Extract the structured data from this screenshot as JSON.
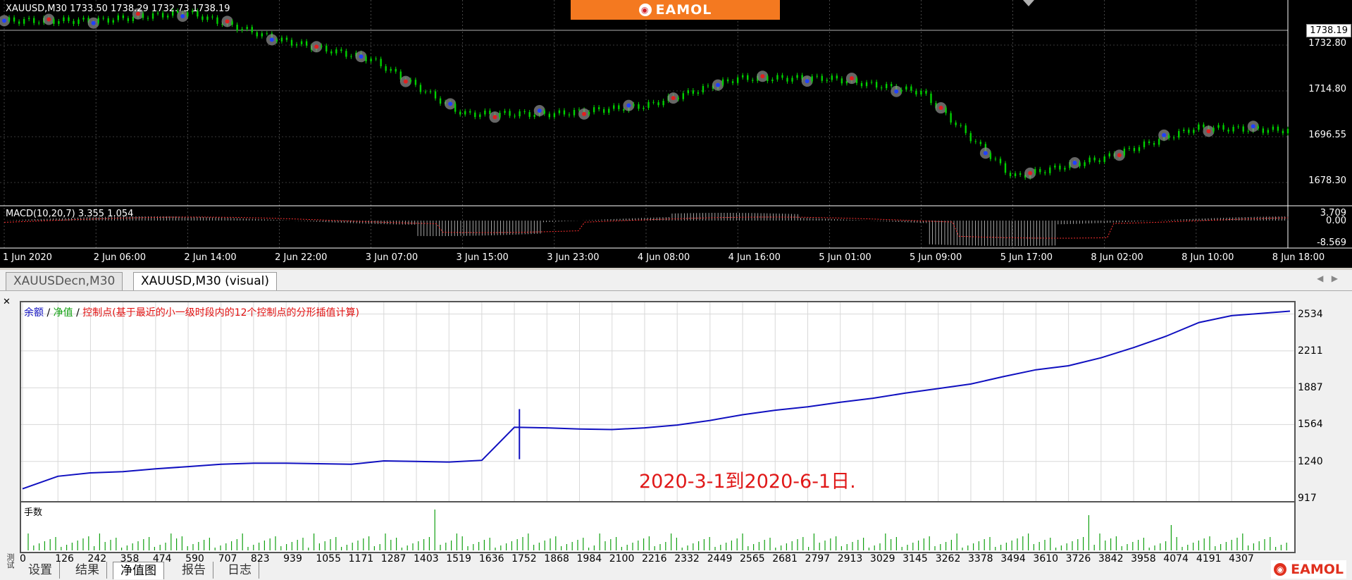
{
  "top_chart": {
    "symbol_label": "XAUUSD,M30  1733.50 1738.29 1732.73 1738.19",
    "banner_text": "EAMOL",
    "banner_logo_icon": "eamol-logo-icon",
    "current_price": "1738.19",
    "price_axis": [
      "1732.80",
      "1714.80",
      "1696.55",
      "1678.30"
    ],
    "macd_label": "MACD(10,20,7) 3.355 1.054",
    "macd_axis": [
      "3.709",
      "0.00",
      "-8.569"
    ],
    "time_axis": [
      "1 Jun 2020",
      "2 Jun 06:00",
      "2 Jun 14:00",
      "2 Jun 22:00",
      "3 Jun 07:00",
      "3 Jun 15:00",
      "3 Jun 23:00",
      "4 Jun 08:00",
      "4 Jun 16:00",
      "5 Jun 01:00",
      "5 Jun 09:00",
      "5 Jun 17:00",
      "8 Jun 02:00",
      "8 Jun 10:00",
      "8 Jun 18:00"
    ],
    "colors": {
      "background": "#000000",
      "up": "#00d000",
      "signal": "#ff3030",
      "grid": "#c0c0c0",
      "banner": "#f47920"
    },
    "chart_data": {
      "type": "line",
      "title": "XAUUSD,M30",
      "x": [
        "1 Jun 2020",
        "2 Jun 06:00",
        "2 Jun 14:00",
        "2 Jun 22:00",
        "3 Jun 07:00",
        "3 Jun 15:00",
        "3 Jun 23:00",
        "4 Jun 08:00",
        "4 Jun 16:00",
        "5 Jun 01:00",
        "5 Jun 09:00",
        "5 Jun 17:00",
        "8 Jun 02:00",
        "8 Jun 10:00",
        "8 Jun 18:00"
      ],
      "series": [
        {
          "values": [
            1736,
            1736,
            1739,
            1729,
            1722,
            1702,
            1702,
            1705,
            1715,
            1715,
            1710,
            1679,
            1686,
            1697,
            1696
          ]
        }
      ],
      "ylim": [
        1669,
        1742
      ]
    }
  },
  "tabs": {
    "items": [
      "XAUUSDecn,M30",
      "XAUUSD,M30 (visual)"
    ],
    "active": 1,
    "scroll_left_icon": "chevron-left-icon",
    "scroll_right_icon": "chevron-right-icon"
  },
  "tester": {
    "close_icon": "close-icon",
    "side_text": "测试",
    "legend": {
      "balance": "余额",
      "equity": "净值",
      "control": "控制点(基于最近的小一级时段内的12个控制点的分形插值计算)",
      "sep": " / "
    },
    "note": "2020-3-1到2020-6-1日.",
    "volume_title": "手数",
    "colors": {
      "balance": "#1010c0",
      "equity": "#10a010",
      "note": "#e01818"
    },
    "chart_data": {
      "type": "line",
      "title": "余额 / 净值",
      "x": [
        0,
        126,
        242,
        358,
        474,
        590,
        707,
        823,
        939,
        1055,
        1171,
        1287,
        1403,
        1519,
        1636,
        1752,
        1868,
        1984,
        2100,
        2216,
        2332,
        2449,
        2565,
        2681,
        2797,
        2913,
        3029,
        3145,
        3262,
        3378,
        3494,
        3610,
        3726,
        3842,
        3958,
        4074,
        4191,
        4307
      ],
      "series": [
        {
          "name": "余额",
          "values": [
            1000,
            1110,
            1140,
            1150,
            1175,
            1195,
            1215,
            1225,
            1225,
            1220,
            1215,
            1245,
            1240,
            1235,
            1250,
            1540,
            1535,
            1525,
            1520,
            1535,
            1560,
            1600,
            1650,
            1690,
            1720,
            1760,
            1795,
            1840,
            1880,
            1920,
            1985,
            2045,
            2080,
            2150,
            2240,
            2340,
            2460,
            2520
          ]
        }
      ],
      "yticks": [
        "2534",
        "2211",
        "1887",
        "1564",
        "1240",
        "917"
      ],
      "xticks": [
        "0",
        "126",
        "242",
        "358",
        "474",
        "590",
        "707",
        "823",
        "939",
        "1055",
        "1171",
        "1287",
        "1403",
        "1519",
        "1636",
        "1752",
        "1868",
        "1984",
        "2100",
        "2216",
        "2332",
        "2449",
        "2565",
        "2681",
        "2797",
        "2913",
        "3029",
        "3145",
        "3262",
        "3378",
        "3494",
        "3610",
        "3726",
        "3842",
        "3958",
        "4074",
        "4191",
        "4307"
      ],
      "ylim": [
        917,
        2600
      ]
    }
  },
  "bottom_tabs": {
    "items": [
      "设置",
      "结果",
      "净值图",
      "报告",
      "日志"
    ],
    "active": 2
  },
  "brand_small": "EAMOL"
}
